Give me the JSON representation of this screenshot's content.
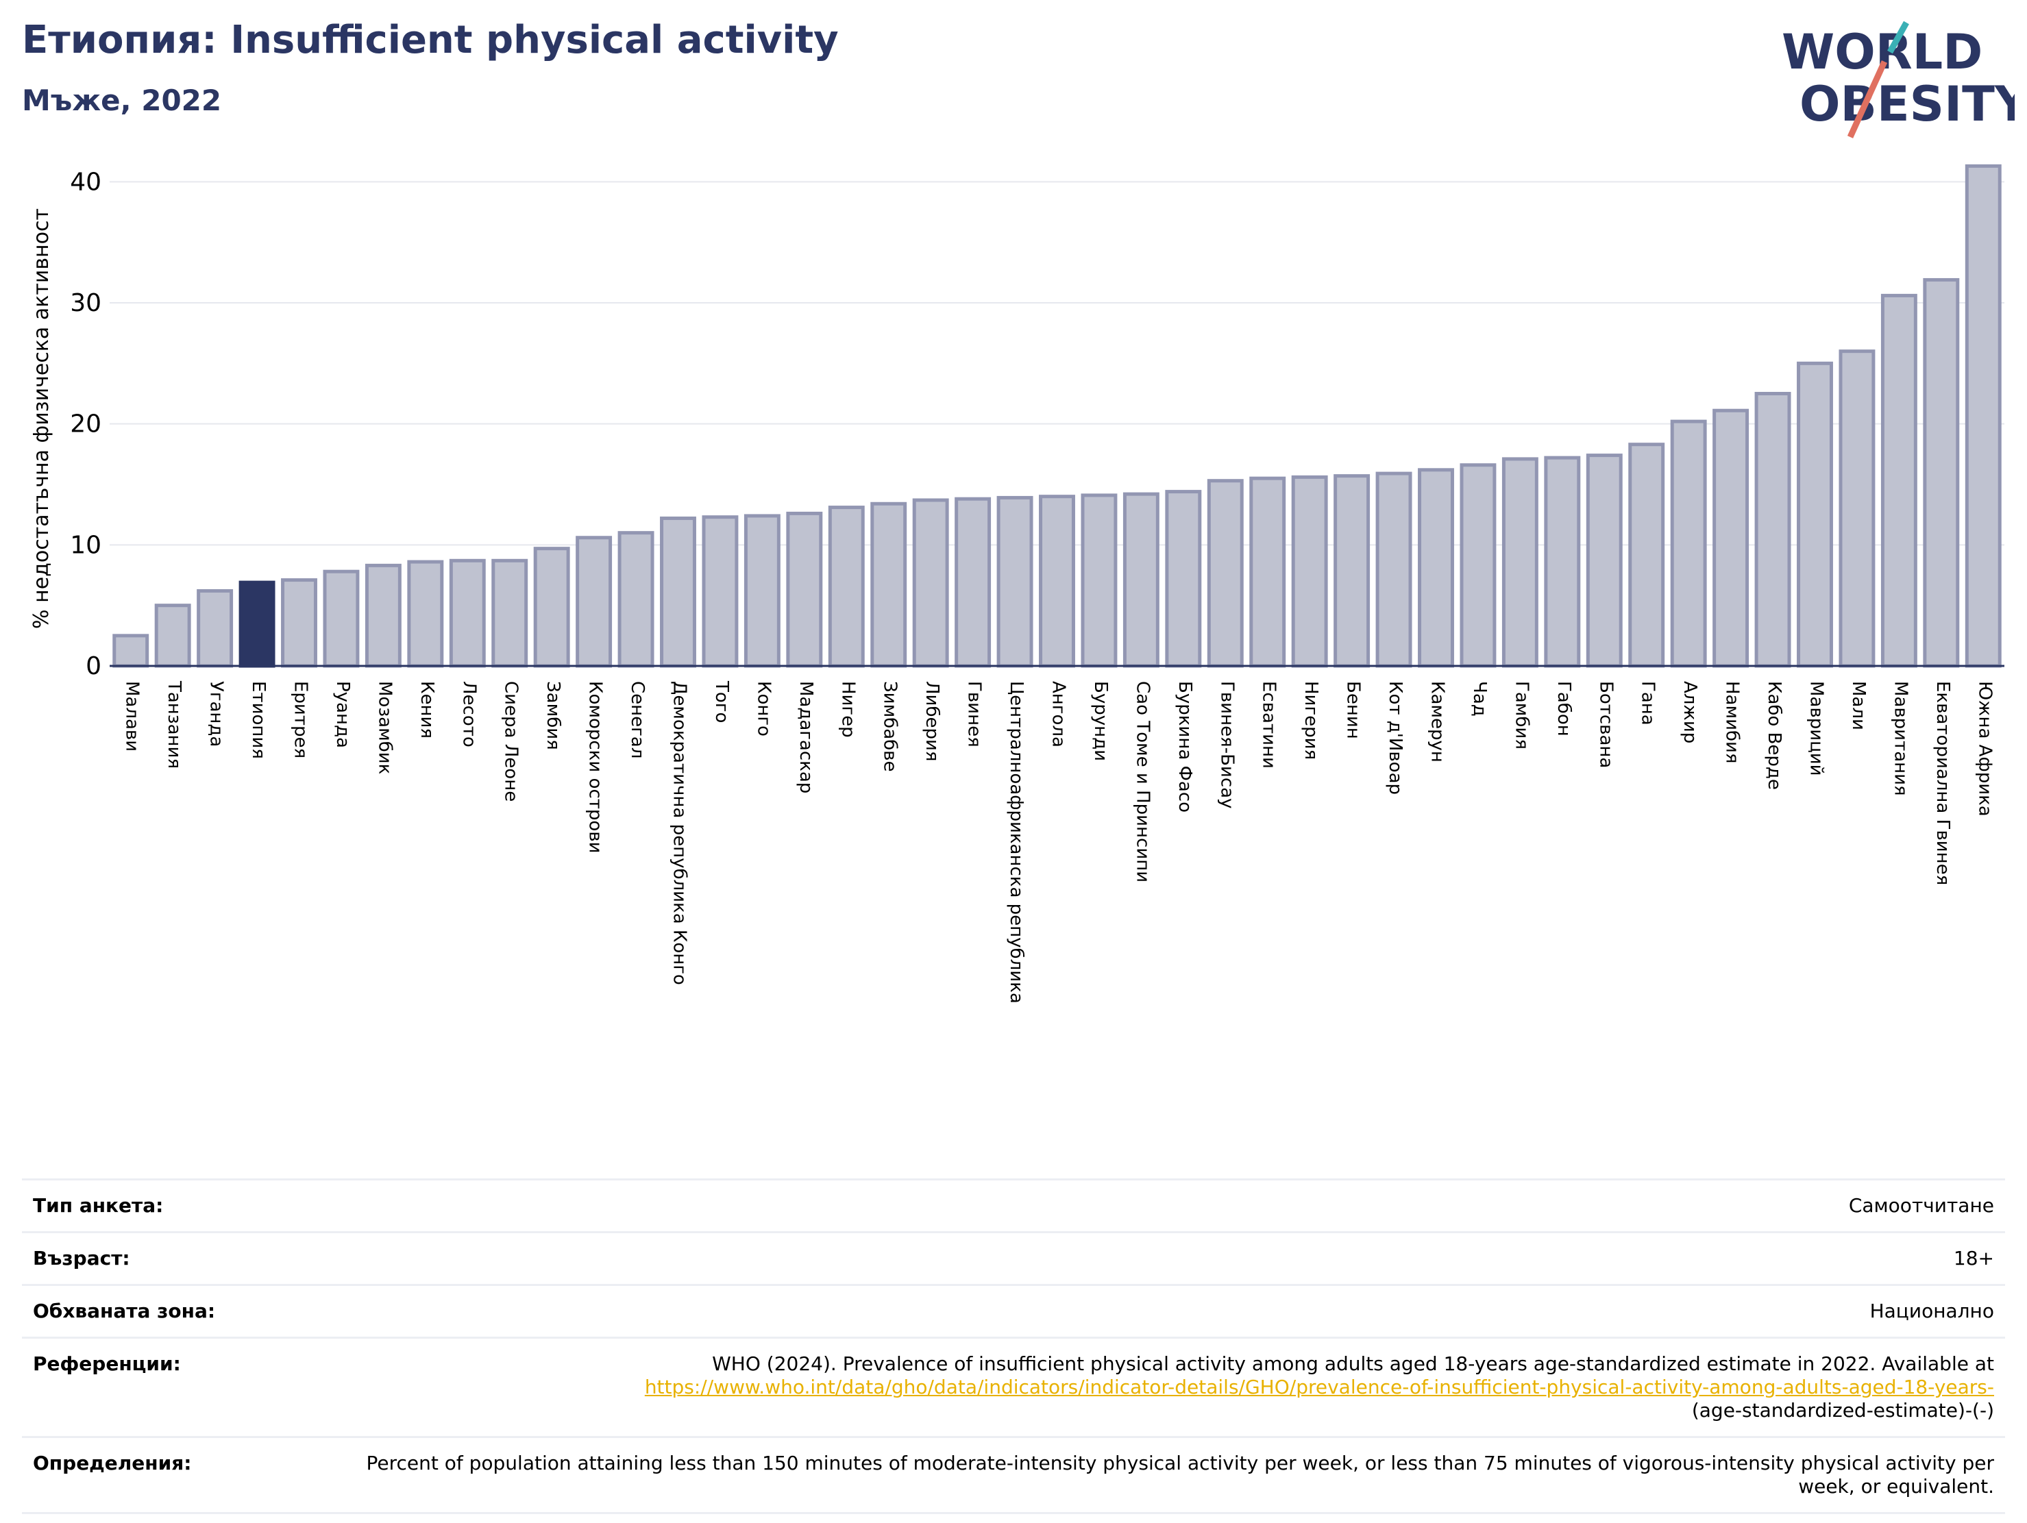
{
  "header": {
    "title": "Етиопия: Insufficient physical activity",
    "subtitle": "Мъже, 2022"
  },
  "logo": {
    "line1": "WORLD",
    "line2": "OBESITY"
  },
  "colors": {
    "bar": "#bfc2d0",
    "bar_edge": "#9296b2",
    "highlight": "#2b3663",
    "title": "#2b3663",
    "link": "#e8b100"
  },
  "chart_data": {
    "type": "bar",
    "ylabel": "% недостатъчна физическа активност",
    "ylim": [
      0,
      42
    ],
    "yticks": [
      0,
      10,
      20,
      30,
      40
    ],
    "grid": true,
    "highlight": "Етиопия",
    "categories": [
      "Малави",
      "Танзания",
      "Уганда",
      "Етиопия",
      "Еритрея",
      "Руанда",
      "Мозамбик",
      "Кения",
      "Лесото",
      "Сиера Леоне",
      "Замбия",
      "Коморски острови",
      "Сенегал",
      "Демократична република Конго",
      "Того",
      "Конго",
      "Мадагаскар",
      "Нигер",
      "Зимбабве",
      "Либерия",
      "Гвинея",
      "Централноафриканска република",
      "Ангола",
      "Бурунди",
      "Сао Томе и Принсипи",
      "Буркина Фасо",
      "Гвинея-Бисау",
      "Есватини",
      "Нигерия",
      "Бенин",
      "Кот д'Ивоар",
      "Камерун",
      "Чад",
      "Гамбия",
      "Габон",
      "Ботсвана",
      "Гана",
      "Алжир",
      "Намибия",
      "Кабо Верде",
      "Мавриций",
      "Мали",
      "Мавритания",
      "Екваториална Гвинея",
      "Южна Африка"
    ],
    "values": [
      2.5,
      5.0,
      6.2,
      6.9,
      7.1,
      7.8,
      8.3,
      8.6,
      8.7,
      8.7,
      9.7,
      10.6,
      11.0,
      12.2,
      12.3,
      12.4,
      12.6,
      13.1,
      13.4,
      13.7,
      13.8,
      13.9,
      14.0,
      14.1,
      14.2,
      14.4,
      15.3,
      15.5,
      15.6,
      15.7,
      15.9,
      16.2,
      16.6,
      17.1,
      17.2,
      17.4,
      18.3,
      20.2,
      21.1,
      22.5,
      25.0,
      26.0,
      30.6,
      31.9,
      41.3
    ]
  },
  "info": {
    "survey_label": "Тип анкета:",
    "survey_value": "Самоотчитане",
    "age_label": "Възраст:",
    "age_value": "18+",
    "area_label": "Обхваната зона:",
    "area_value": "Национално",
    "ref_label": "Референции:",
    "ref_text": "WHO (2024). Prevalence of insufficient physical activity among adults aged 18-years age-standardized estimate in 2022. Available at",
    "ref_link": "https://www.who.int/data/gho/data/indicators/indicator-details/GHO/prevalence-of-insufficient-physical-activity-among-adults-aged-18-years-",
    "ref_tail": "(age-standardized-estimate)-(-)",
    "def_label": "Определения:",
    "def_value": "Percent of population attaining less than 150 minutes of moderate-intensity physical activity per week, or less than 75 minutes of vigorous-intensity physical activity per week, or equivalent."
  }
}
